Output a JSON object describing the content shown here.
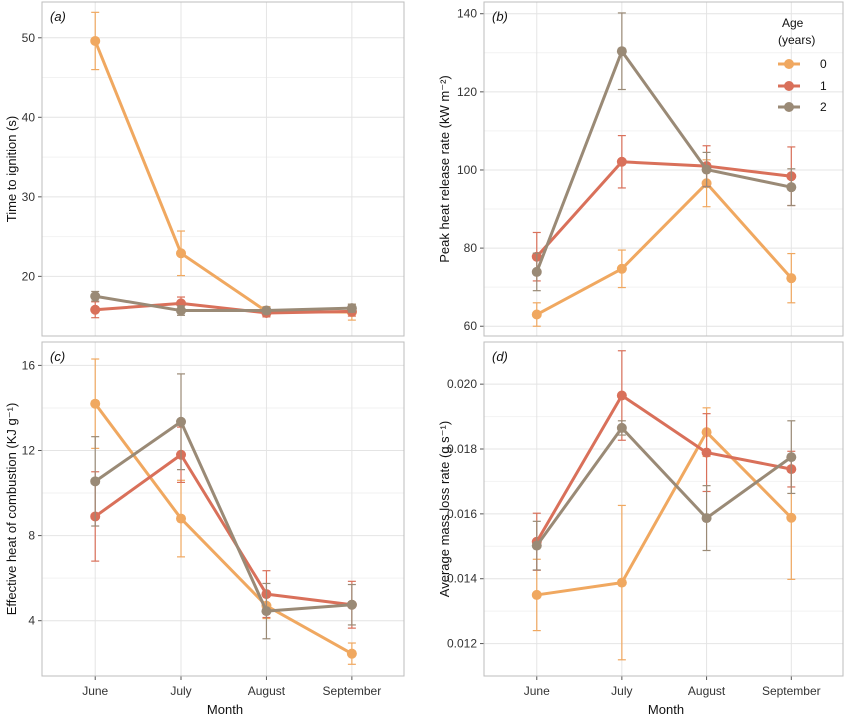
{
  "colors": {
    "0": "#f0a860",
    "1": "#d9705a",
    "2": "#9a8a76"
  },
  "legend": {
    "title_line1": "Age",
    "title_line2": "(years)",
    "labels": [
      "0",
      "1",
      "2"
    ]
  },
  "xlabel": "Month",
  "chart_data": [
    {
      "type": "line",
      "panel_label": "(a)",
      "categories": [
        "June",
        "July",
        "August",
        "September"
      ],
      "ylabel": "Time to ignition (s)",
      "ylim": [
        12.5,
        54.5
      ],
      "yticks": [
        20,
        30,
        40,
        50
      ],
      "series": [
        {
          "name": "0",
          "values": [
            49.6,
            22.9,
            15.6,
            15.5
          ],
          "err": [
            3.6,
            2.8,
            0.6,
            1.0
          ]
        },
        {
          "name": "1",
          "values": [
            15.8,
            16.6,
            15.4,
            15.6
          ],
          "err": [
            1.0,
            0.8,
            0.5,
            0.6
          ]
        },
        {
          "name": "2",
          "values": [
            17.5,
            15.7,
            15.7,
            16.0
          ],
          "err": [
            0.6,
            0.6,
            0.4,
            0.5
          ]
        }
      ]
    },
    {
      "type": "line",
      "panel_label": "(b)",
      "categories": [
        "June",
        "July",
        "August",
        "September"
      ],
      "ylabel": "Peak heat release rate (kW m⁻²)",
      "ylim": [
        57.5,
        143
      ],
      "yticks": [
        60,
        80,
        100,
        120,
        140
      ],
      "series": [
        {
          "name": "0",
          "values": [
            63.0,
            74.7,
            96.6,
            72.3
          ],
          "err": [
            3.0,
            4.8,
            6.0,
            6.3
          ]
        },
        {
          "name": "1",
          "values": [
            77.8,
            102.1,
            101.0,
            98.4
          ],
          "err": [
            6.2,
            6.7,
            5.2,
            7.5
          ]
        },
        {
          "name": "2",
          "values": [
            73.9,
            130.4,
            100.1,
            95.6
          ],
          "err": [
            4.8,
            9.8,
            4.4,
            4.7
          ]
        }
      ]
    },
    {
      "type": "line",
      "panel_label": "(c)",
      "categories": [
        "June",
        "July",
        "August",
        "September"
      ],
      "ylabel": "Effective heat of combustion (KJ g⁻¹)",
      "ylim": [
        1.4,
        17.1
      ],
      "yticks": [
        4,
        8,
        12,
        16
      ],
      "series": [
        {
          "name": "0",
          "values": [
            14.2,
            8.8,
            4.7,
            2.45
          ],
          "err": [
            2.1,
            1.8,
            0.6,
            0.5
          ]
        },
        {
          "name": "1",
          "values": [
            8.9,
            11.8,
            5.25,
            4.75
          ],
          "err": [
            2.1,
            1.3,
            1.1,
            1.1
          ]
        },
        {
          "name": "2",
          "values": [
            10.55,
            13.35,
            4.45,
            4.75
          ],
          "err": [
            2.1,
            2.25,
            1.3,
            0.95
          ]
        }
      ]
    },
    {
      "type": "line",
      "panel_label": "(d)",
      "categories": [
        "June",
        "July",
        "August",
        "September"
      ],
      "ylabel": "Average mass loss rate (g s⁻¹)",
      "ylim": [
        0.011,
        0.0213
      ],
      "yticks": [
        0.012,
        0.014,
        0.016,
        0.018,
        0.02
      ],
      "ytick_labels": [
        "0.012",
        "0.014",
        "0.016",
        "0.018",
        "0.020"
      ],
      "series": [
        {
          "name": "0",
          "values": [
            0.0135,
            0.01388,
            0.01852,
            0.01588
          ],
          "err": [
            0.0011,
            0.00238,
            0.00075,
            0.0019
          ]
        },
        {
          "name": "1",
          "values": [
            0.01514,
            0.01965,
            0.01789,
            0.01738
          ],
          "err": [
            0.00088,
            0.00138,
            0.0012,
            0.00055
          ]
        },
        {
          "name": "2",
          "values": [
            0.01502,
            0.01865,
            0.01587,
            0.01775
          ],
          "err": [
            0.00075,
            0.00022,
            0.001,
            0.00112
          ]
        }
      ]
    }
  ]
}
